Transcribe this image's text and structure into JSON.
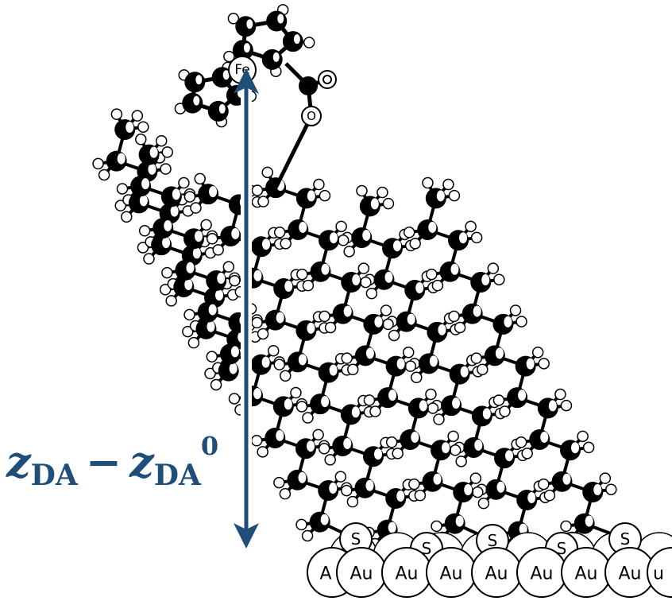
{
  "label": {
    "z1": "z",
    "sub1": "DA",
    "minus": "−",
    "z2": "z",
    "sub2": "DA",
    "sup": "0"
  },
  "atoms": {
    "fe": "Fe",
    "o": "O",
    "s": [
      "S",
      "S",
      "S",
      "S",
      "S"
    ],
    "au": [
      "A",
      "Au",
      "Au",
      "Au",
      "Au",
      "Au",
      "Au",
      "Au",
      "u"
    ]
  }
}
